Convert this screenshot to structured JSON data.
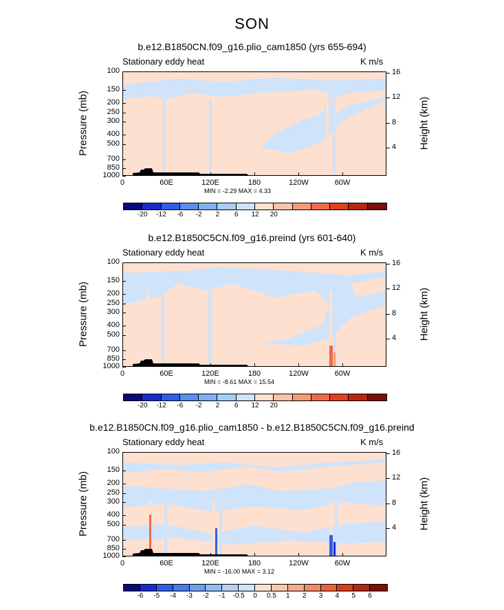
{
  "season": "SON",
  "panels": [
    {
      "title": "b.e12.B1850CN.f09_g16.plio_cam1850 (yrs 655-694)",
      "left": "Stationary eddy heat",
      "right": "K m/s",
      "ylabel": "Pressure (mb)",
      "ylabel_right": "Height (km)",
      "minmax": "MIN =   -2.29   MAX =    4.33",
      "min": -2.29,
      "max": 4.33,
      "cbar_labels": [
        "-20",
        "-12",
        "-6",
        "-2",
        "2",
        "6",
        "12",
        "20"
      ]
    },
    {
      "title": "b.e12.B1850C5CN.f09_g16.preind (yrs 601-640)",
      "left": "Stationary eddy heat",
      "right": "K m/s",
      "ylabel": "Pressure (mb)",
      "ylabel_right": "Height (km)",
      "minmax": "MIN =   -8.61   MAX =   15.54",
      "min": -8.61,
      "max": 15.54,
      "cbar_labels": [
        "-20",
        "-12",
        "-6",
        "-2",
        "2",
        "6",
        "12",
        "20"
      ]
    },
    {
      "title": "b.e12.B1850CN.f09_g16.plio_cam1850 - b.e12.B1850C5CN.f09_g16.preind",
      "left": "Stationary eddy heat",
      "right": "K m/s",
      "ylabel": "Pressure (mb)",
      "ylabel_right": "Height (km)",
      "minmax": "MIN =  -16.00   MAX =    3.12",
      "min": -16.0,
      "max": 3.12,
      "cbar_labels": [
        "-6",
        "-5",
        "-4",
        "-3",
        "-2",
        "-1",
        "-0.5",
        "0",
        "0.5",
        "1",
        "2",
        "3",
        "4",
        "5",
        "6"
      ]
    }
  ],
  "axes": {
    "xticks": [
      "0",
      "60E",
      "120E",
      "180",
      "120W",
      "60W"
    ],
    "pressure_ticks": [
      "100",
      "150",
      "200",
      "250",
      "300",
      "400",
      "500",
      "700",
      "850",
      "1000"
    ],
    "height_ticks": [
      "16",
      "12",
      "8",
      "4"
    ]
  },
  "colors": {
    "cbar_main": [
      "#0a0a7a",
      "#1b2ccf",
      "#2e5ee8",
      "#5a8df0",
      "#7fb0f4",
      "#a7cdf7",
      "#cfe3fb",
      "#fde0cf",
      "#f8c3a6",
      "#f29b78",
      "#ec6a48",
      "#e0401e",
      "#b82810",
      "#7a1008"
    ],
    "cbar_diff": [
      "#0a0a7a",
      "#1b2ccf",
      "#2e5ee8",
      "#4a7ae8",
      "#6f9ef0",
      "#93bbf3",
      "#b5d1f7",
      "#cfe3fb",
      "#fde0cf",
      "#f8c8ad",
      "#f4ab8b",
      "#ef8a63",
      "#e9623e",
      "#d63f1e",
      "#b02810",
      "#7a1008"
    ],
    "neg_light": "#cfe3fb",
    "pos_light": "#fde0cf",
    "topo": "#000000"
  },
  "chart_data": [
    {
      "type": "heatmap",
      "title": "b.e12.B1850CN.f09_g16.plio_cam1850 (yrs 655-694)",
      "variable": "Stationary eddy heat",
      "units": "K m/s",
      "xlabel": "",
      "ylabel": "Pressure (mb)",
      "x_ticks": [
        "0",
        "60E",
        "120E",
        "180",
        "120W",
        "60W"
      ],
      "y_ticks": [
        100,
        150,
        200,
        250,
        300,
        400,
        500,
        700,
        850,
        1000
      ],
      "ylim": [
        1000,
        100
      ],
      "min": -2.29,
      "max": 4.33,
      "contour_levels": [
        -20,
        -12,
        -6,
        -2,
        2,
        6,
        12,
        20
      ]
    },
    {
      "type": "heatmap",
      "title": "b.e12.B1850C5CN.f09_g16.preind (yrs 601-640)",
      "variable": "Stationary eddy heat",
      "units": "K m/s",
      "xlabel": "",
      "ylabel": "Pressure (mb)",
      "x_ticks": [
        "0",
        "60E",
        "120E",
        "180",
        "120W",
        "60W"
      ],
      "y_ticks": [
        100,
        150,
        200,
        250,
        300,
        400,
        500,
        700,
        850,
        1000
      ],
      "ylim": [
        1000,
        100
      ],
      "min": -8.61,
      "max": 15.54,
      "contour_levels": [
        -20,
        -12,
        -6,
        -2,
        2,
        6,
        12,
        20
      ]
    },
    {
      "type": "heatmap",
      "title": "b.e12.B1850CN.f09_g16.plio_cam1850 - b.e12.B1850C5CN.f09_g16.preind",
      "variable": "Stationary eddy heat",
      "units": "K m/s",
      "xlabel": "",
      "ylabel": "Pressure (mb)",
      "x_ticks": [
        "0",
        "60E",
        "120E",
        "180",
        "120W",
        "60W"
      ],
      "y_ticks": [
        100,
        150,
        200,
        250,
        300,
        400,
        500,
        700,
        850,
        1000
      ],
      "ylim": [
        1000,
        100
      ],
      "min": -16.0,
      "max": 3.12,
      "contour_levels": [
        -6,
        -5,
        -4,
        -3,
        -2,
        -1,
        -0.5,
        0,
        0.5,
        1,
        2,
        3,
        4,
        5,
        6
      ]
    }
  ]
}
